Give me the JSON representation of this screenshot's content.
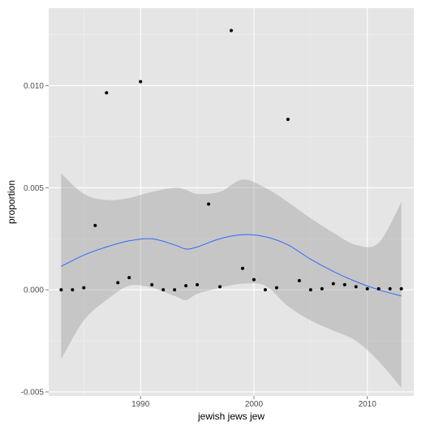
{
  "chart_data": {
    "type": "scatter",
    "xlabel": "jewish jews jew",
    "ylabel": "proportion",
    "xlim": [
      1981.9,
      2014.1
    ],
    "ylim": [
      -0.0052,
      0.0138
    ],
    "x_ticks": [
      1990,
      2000,
      2010
    ],
    "x_tick_labels": [
      "1990",
      "2000",
      "2010"
    ],
    "y_ticks": [
      -0.005,
      0.0,
      0.005,
      0.01
    ],
    "y_tick_labels": [
      "-0.005",
      "0.000",
      "0.005",
      "0.010"
    ],
    "grid": true,
    "points": [
      {
        "x": 1983,
        "y": 0.0
      },
      {
        "x": 1984,
        "y": 0.0
      },
      {
        "x": 1985,
        "y": 0.0001
      },
      {
        "x": 1986,
        "y": 0.00315
      },
      {
        "x": 1987,
        "y": 0.00965
      },
      {
        "x": 1988,
        "y": 0.00035
      },
      {
        "x": 1989,
        "y": 0.0006
      },
      {
        "x": 1990,
        "y": 0.0102
      },
      {
        "x": 1991,
        "y": 0.00025
      },
      {
        "x": 1992,
        "y": 0.0
      },
      {
        "x": 1993,
        "y": 0.0
      },
      {
        "x": 1994,
        "y": 0.0002
      },
      {
        "x": 1995,
        "y": 0.00025
      },
      {
        "x": 1996,
        "y": 0.0042
      },
      {
        "x": 1997,
        "y": 0.00015
      },
      {
        "x": 1998,
        "y": 0.0127
      },
      {
        "x": 1999,
        "y": 0.00105
      },
      {
        "x": 2000,
        "y": 0.0005
      },
      {
        "x": 2001,
        "y": 0.0
      },
      {
        "x": 2002,
        "y": 0.0001
      },
      {
        "x": 2003,
        "y": 0.00835
      },
      {
        "x": 2004,
        "y": 0.00045
      },
      {
        "x": 2005,
        "y": 0.0
      },
      {
        "x": 2006,
        "y": 5e-05
      },
      {
        "x": 2007,
        "y": 0.0003
      },
      {
        "x": 2008,
        "y": 0.00025
      },
      {
        "x": 2009,
        "y": 0.00015
      },
      {
        "x": 2010,
        "y": 5e-05
      },
      {
        "x": 2011,
        "y": 5e-05
      },
      {
        "x": 2012,
        "y": 5e-05
      },
      {
        "x": 2013,
        "y": 5e-05
      }
    ],
    "smooth": {
      "x": [
        1983,
        1985,
        1987,
        1989,
        1991,
        1993,
        1994,
        1995,
        1997,
        1999,
        2001,
        2003,
        2005,
        2007,
        2009,
        2011,
        2013
      ],
      "y": [
        0.00115,
        0.0017,
        0.0021,
        0.0024,
        0.0025,
        0.0022,
        0.002,
        0.0021,
        0.0025,
        0.0027,
        0.0026,
        0.0022,
        0.0015,
        0.0009,
        0.0004,
        0.0,
        -0.0003
      ],
      "lower": [
        -0.0034,
        -0.0015,
        -0.0005,
        0.0002,
        0.0001,
        -0.0003,
        -0.0005,
        -0.0002,
        0.0001,
        0.0003,
        0.0002,
        -0.0008,
        -0.0015,
        -0.002,
        -0.0025,
        -0.0035,
        -0.0048
      ],
      "upper": [
        0.0057,
        0.0047,
        0.0044,
        0.0045,
        0.0048,
        0.005,
        0.0049,
        0.0047,
        0.0048,
        0.0054,
        0.005,
        0.0043,
        0.0035,
        0.0028,
        0.0022,
        0.0023,
        0.0043
      ]
    },
    "colors": {
      "panel": "#e5e5e5",
      "grid_major": "#ffffff",
      "grid_minor": "#f2f2f2",
      "points": "#000000",
      "line": "#3366ff",
      "ribbon": "#999999"
    }
  }
}
